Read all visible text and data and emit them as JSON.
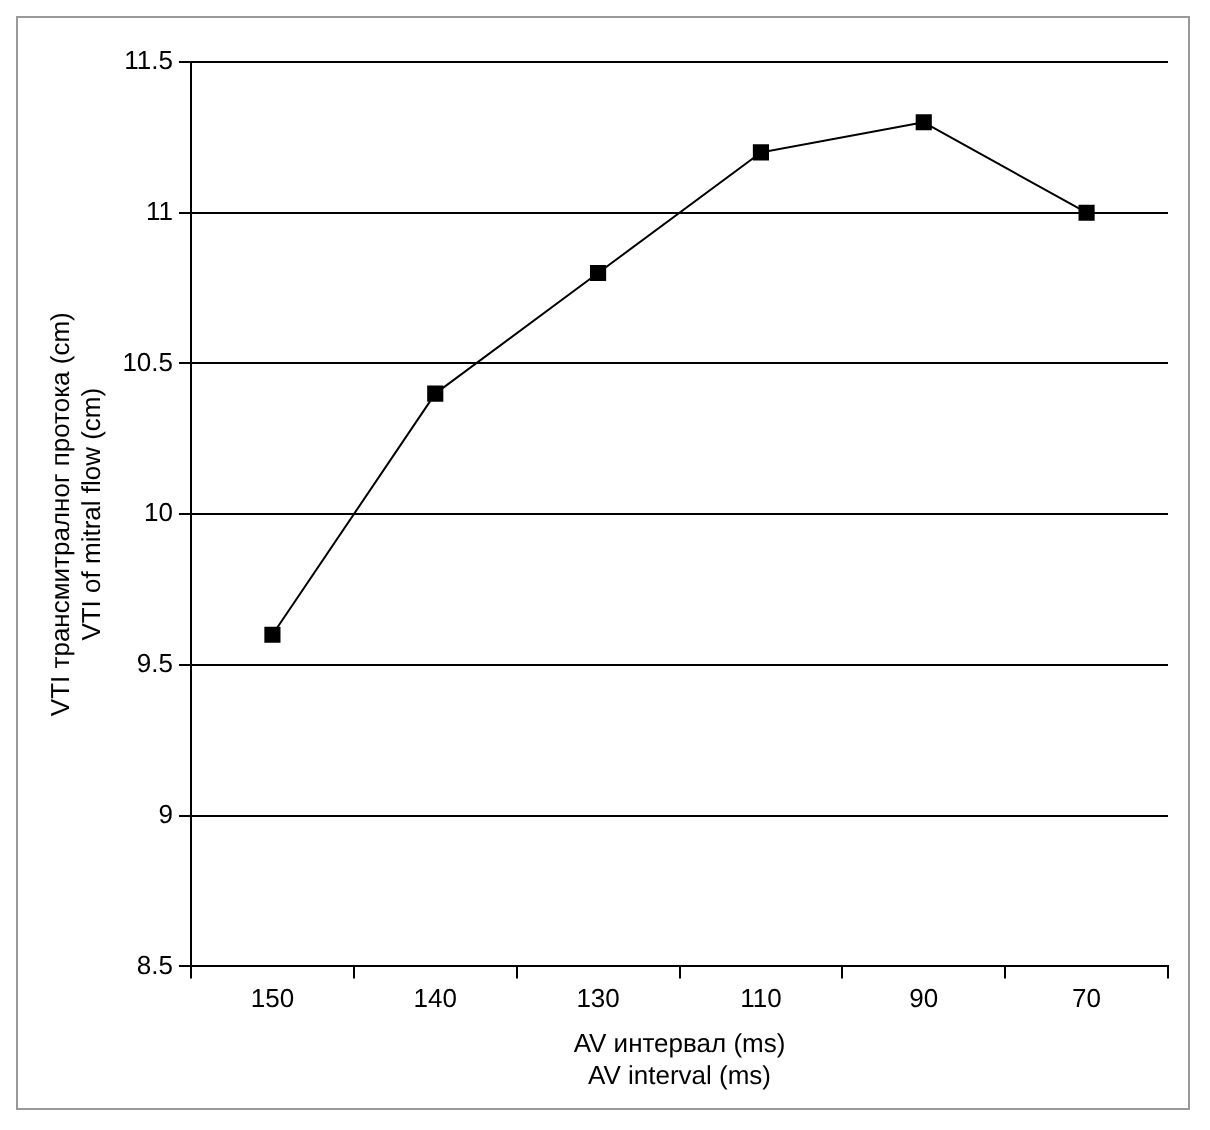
{
  "chart_data": {
    "type": "line",
    "xlabel": "AV интервал (ms)\nAV interval (ms)",
    "ylabel": "VTI трансмитралног протока (cm)\nVTI of mitral flow (cm)",
    "categories": [
      "150",
      "140",
      "130",
      "110",
      "90",
      "70"
    ],
    "series": [
      {
        "color": "#000000",
        "values": [
          9.6,
          10.4,
          10.8,
          11.2,
          11.3,
          11.0
        ]
      }
    ],
    "ylim": [
      8.5,
      11.5
    ],
    "yticks": [
      8.5,
      9,
      9.5,
      10,
      10.5,
      11,
      11.5
    ],
    "grid": "y",
    "marker": "square",
    "line_style": "solid",
    "legend": false
  }
}
